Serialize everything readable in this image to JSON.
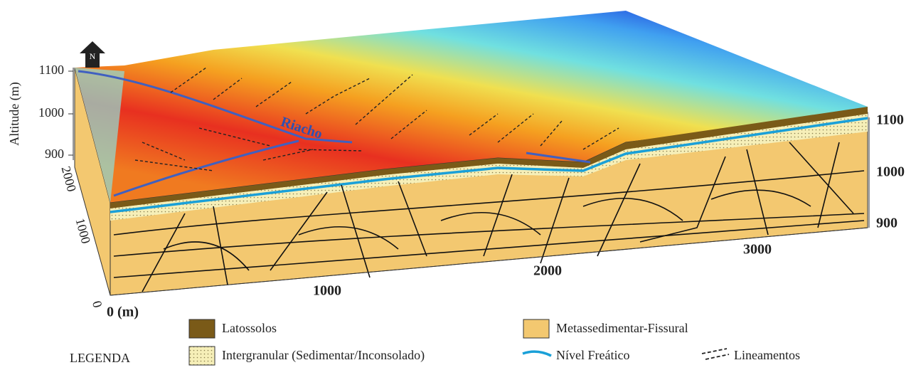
{
  "north_arrow": "N",
  "axes": {
    "left_title": "Altitude (m)",
    "left_ticks": [
      1100,
      1000,
      900
    ],
    "right_ticks": [
      1100,
      1000,
      900
    ],
    "depth_ticks": [
      2000,
      1000,
      0
    ],
    "x_ticks": [
      "0 (m)",
      1000,
      2000,
      3000
    ]
  },
  "annotations": {
    "river": "Riacho"
  },
  "legend": {
    "title": "LEGENDA",
    "items": [
      {
        "label": "Latossolos"
      },
      {
        "label": "Intergranular (Sedimentar/Inconsolado)"
      },
      {
        "label": "Metassedimentar-Fissural"
      },
      {
        "label": "Nível Freático"
      },
      {
        "label": "Lineamentos"
      }
    ]
  }
}
